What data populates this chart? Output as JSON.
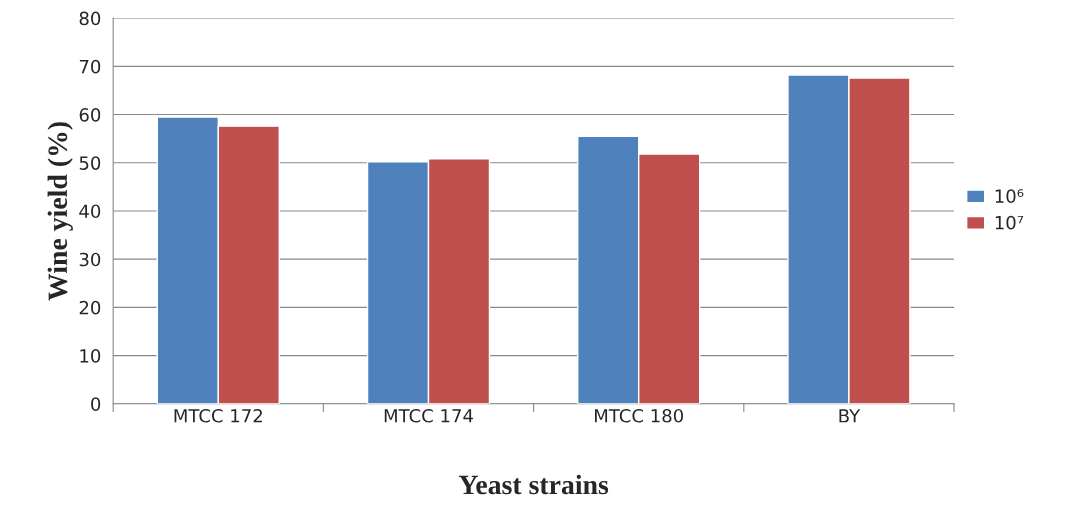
{
  "chart_data": {
    "type": "bar",
    "xlabel": "Yeast strains",
    "ylabel": "Wine yield (%)",
    "categories": [
      "MTCC 172",
      "MTCC 174",
      "MTCC 180",
      "BY"
    ],
    "series": [
      {
        "name": "10⁶",
        "color": "#4f81bd",
        "values": [
          59.5,
          50.2,
          55.5,
          68.2
        ]
      },
      {
        "name": "10⁷",
        "color": "#c0504d",
        "values": [
          57.6,
          50.8,
          51.8,
          67.6
        ]
      }
    ],
    "ylim": [
      0,
      80
    ],
    "yticks": [
      0,
      10,
      20,
      30,
      40,
      50,
      60,
      70,
      80
    ],
    "grid": "y",
    "legend": "right"
  }
}
